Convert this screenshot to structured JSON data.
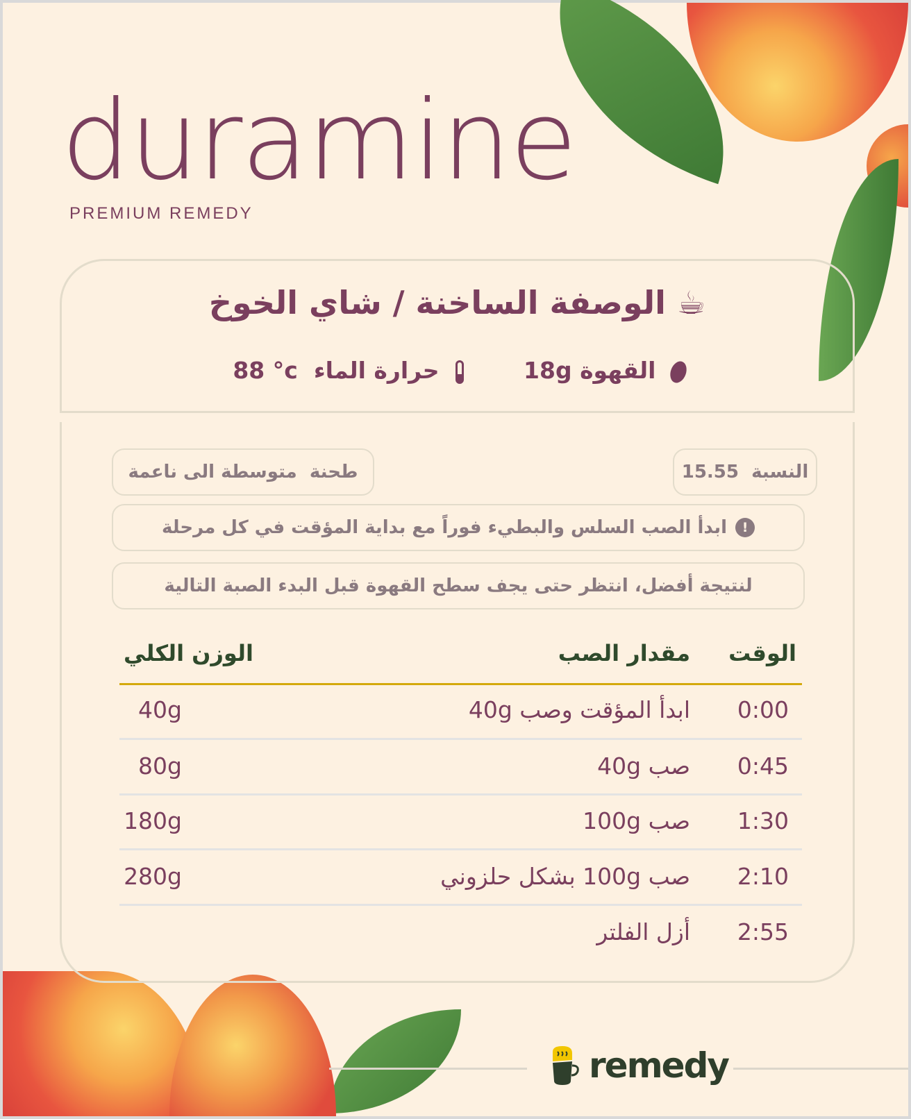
{
  "brand": {
    "name": "duramine",
    "tagline": "PREMIUM REMEDY"
  },
  "recipe": {
    "title": "الوصفة الساخنة / شاي الخوخ",
    "title_icon": "hot-beverage-icon",
    "coffee_label": "القهوة",
    "coffee_value": "18g",
    "coffee_icon": "coffee-bean-icon",
    "water_label": "حرارة الماء",
    "water_value": "88 °c",
    "water_icon": "thermometer-icon"
  },
  "details": {
    "ratio_label": "النسبة",
    "ratio_value": "15.55",
    "grind_label": "طحنة",
    "grind_value": "متوسطة الى ناعمة",
    "notice_1": "ابدأ الصب السلس والبطيء فوراً مع بداية المؤقت في كل مرحلة",
    "notice_1_icon": "!",
    "notice_2": "لنتيجة أفضل، انتظر حتى يجف سطح القهوة قبل البدء الصبة التالية"
  },
  "table": {
    "headers": {
      "time": "الوقت",
      "pour": "مقدار الصب",
      "total": "الوزن الكلي"
    },
    "rows": [
      {
        "time": "0:00",
        "pour": "ابدأ المؤقت وصب 40g",
        "total": "40g"
      },
      {
        "time": "0:45",
        "pour": "صب 40g",
        "total": "80g"
      },
      {
        "time": "1:30",
        "pour": "صب 100g",
        "total": "180g"
      },
      {
        "time": "2:10",
        "pour": "صب 100g  بشكل حلزوني",
        "total": "280g"
      },
      {
        "time": "2:55",
        "pour": "أزل الفلتر",
        "total": ""
      }
    ]
  },
  "footer": {
    "logo": "remedy"
  },
  "colors": {
    "background": "#fdf1e1",
    "primary": "#7a3f5e",
    "muted": "#8a7a80",
    "accent": "#d4a90c",
    "dark_green": "#2f3f2c"
  }
}
